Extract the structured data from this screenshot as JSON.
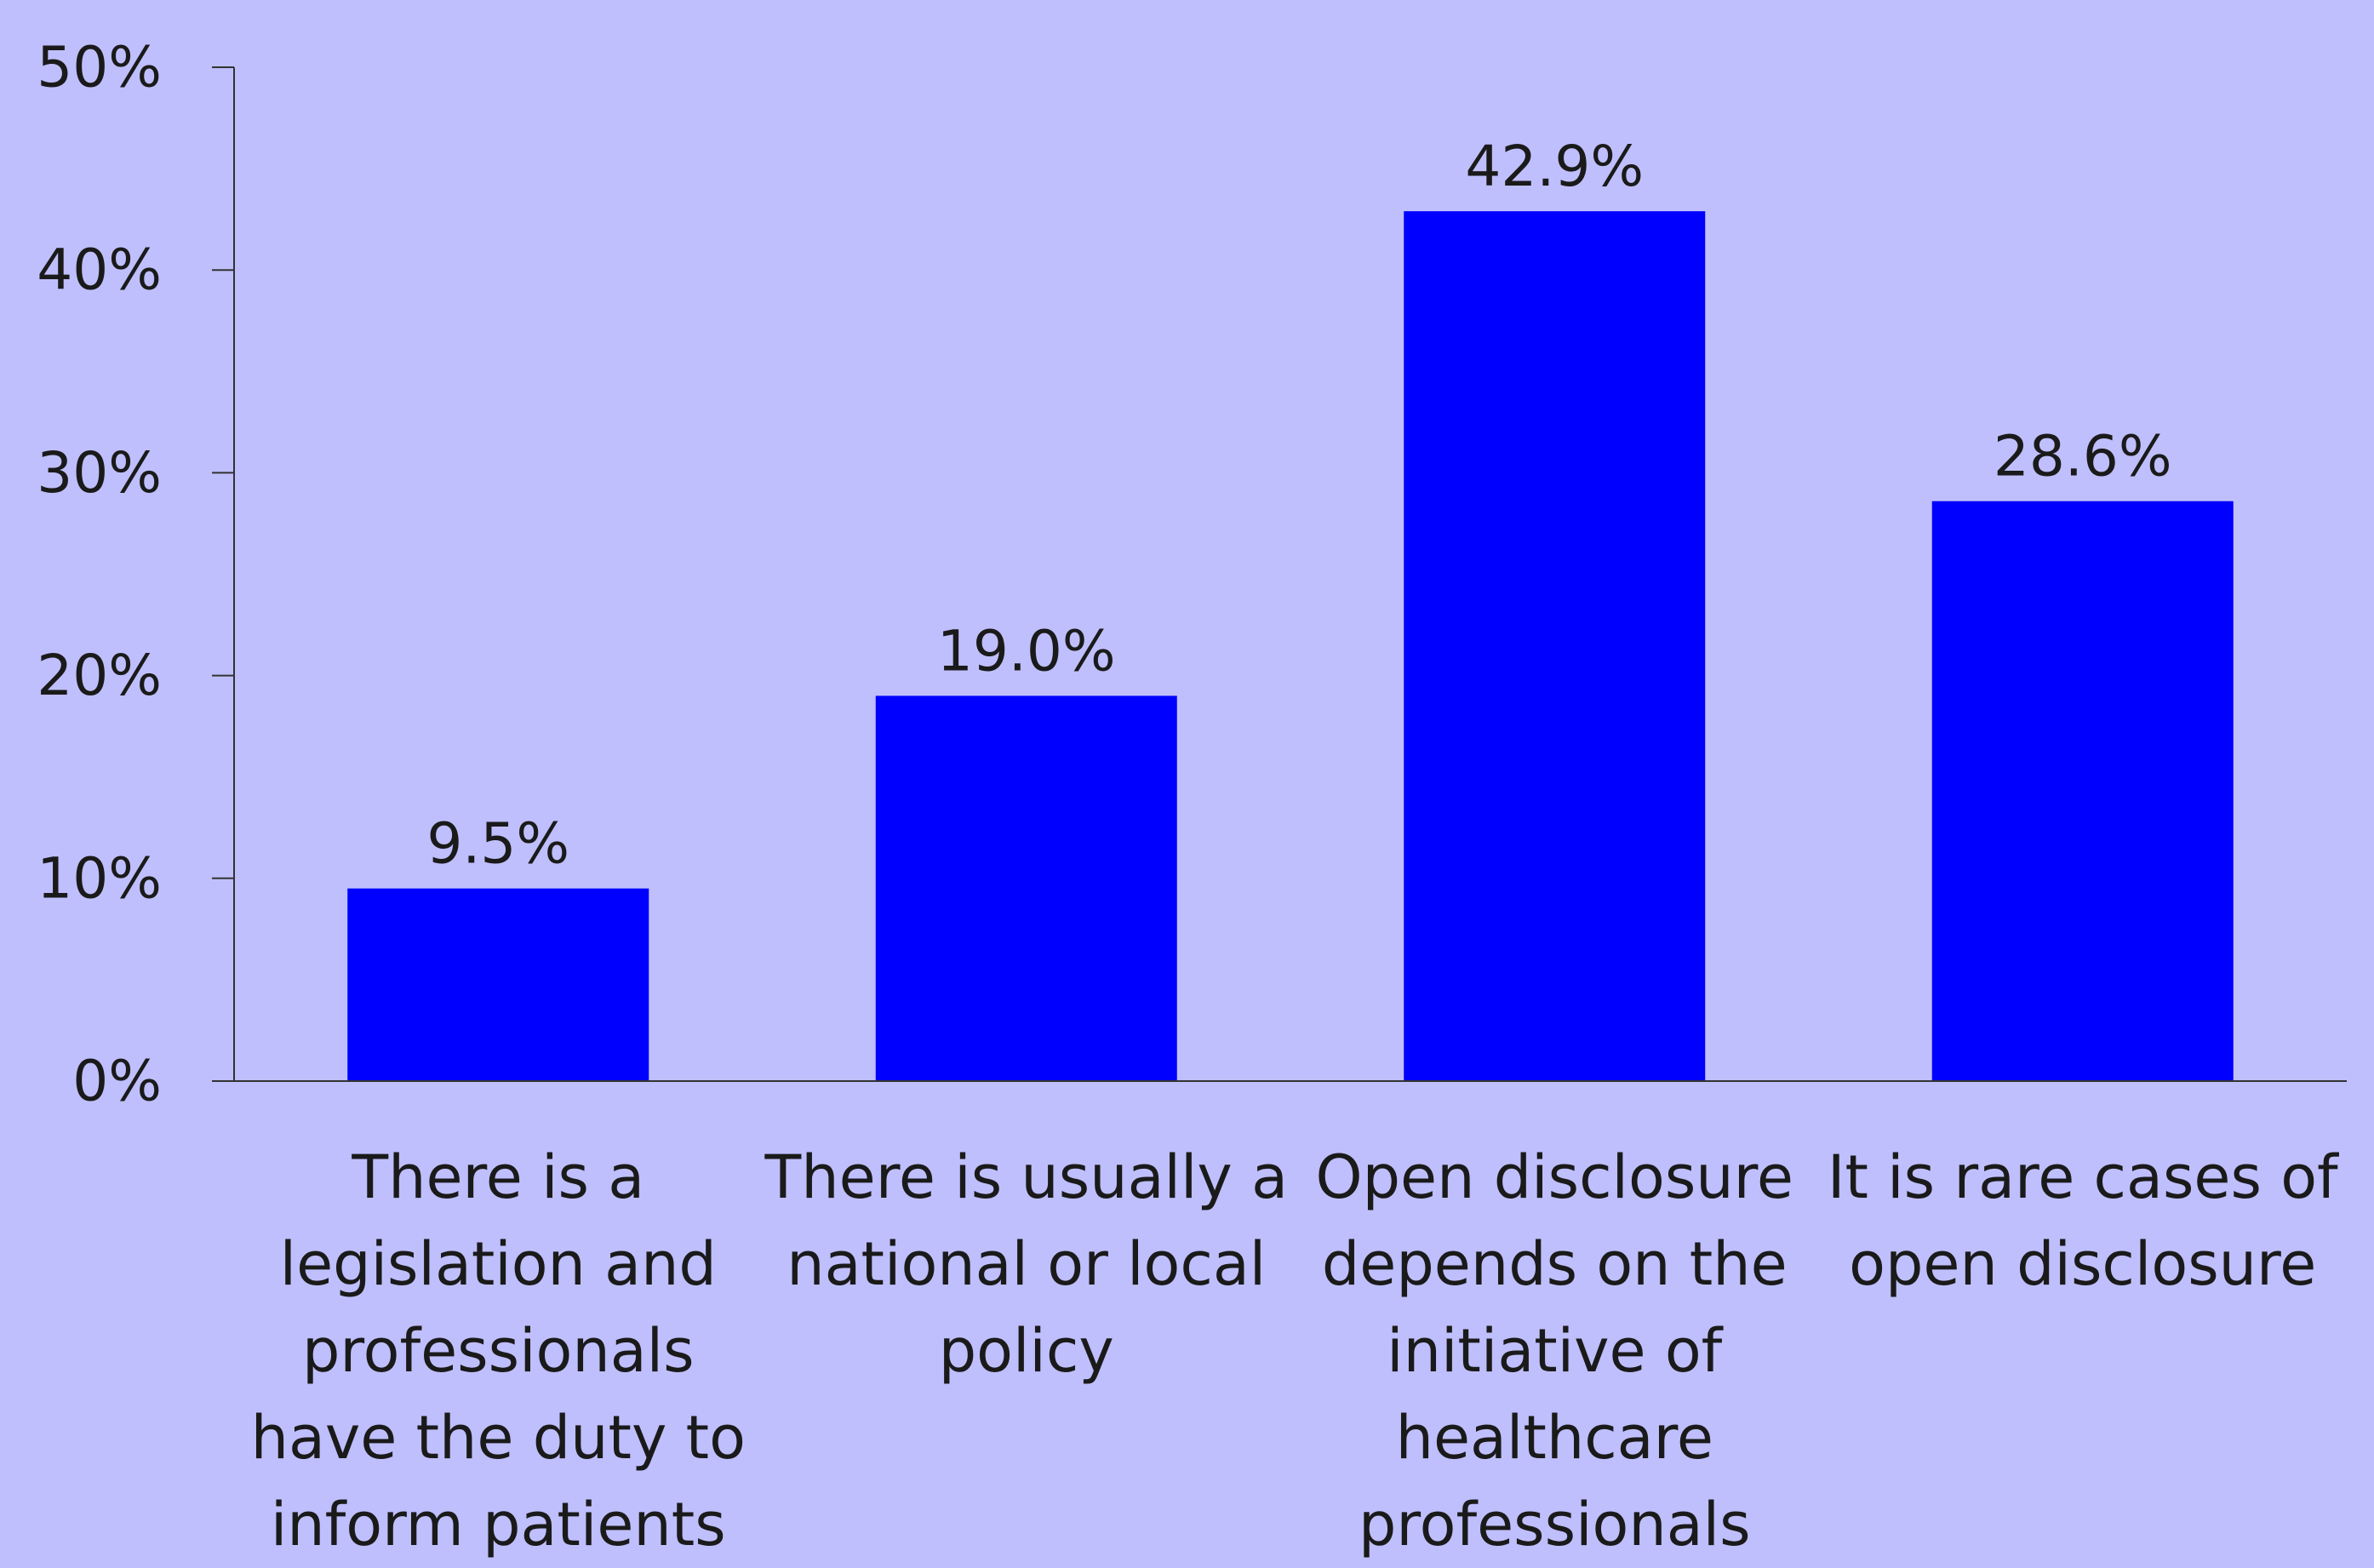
{
  "chart_data": {
    "type": "bar",
    "title": "",
    "xlabel": "",
    "ylabel": "",
    "ylim": [
      0,
      50
    ],
    "y_ticks": [
      0,
      10,
      20,
      30,
      40,
      50
    ],
    "y_tick_labels": [
      "0%",
      "10%",
      "20%",
      "30%",
      "40%",
      "50%"
    ],
    "grid": false,
    "legend": "none",
    "categories": [
      "There is a legislation and professionals have the duty to inform patients",
      "There is usually a national or local policy",
      "Open disclosure depends on the initiative of healthcare professionals",
      "It is rare cases of open disclosure"
    ],
    "values": [
      9.5,
      19.0,
      42.9,
      28.6
    ],
    "data_labels": [
      "9.5%",
      "19.0%",
      "42.9%",
      "28.6%"
    ],
    "colors": {
      "background": "#bfbffd",
      "bar": "#0000fe",
      "axis": "#333333",
      "text": "#1a1a1a"
    }
  }
}
